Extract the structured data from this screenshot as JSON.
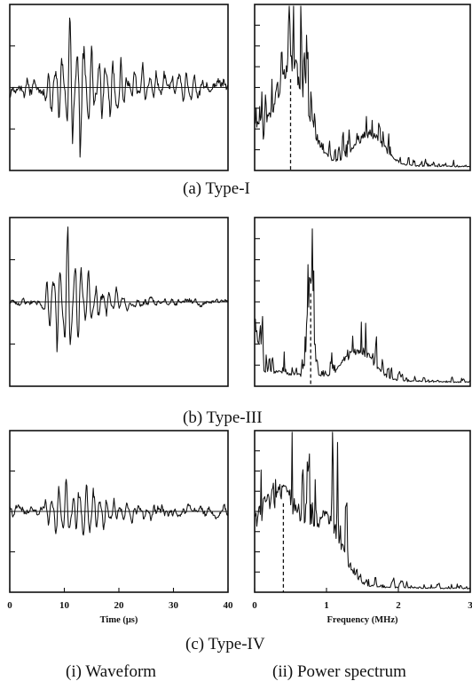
{
  "captions": {
    "a": "(a)  Type-I",
    "b": "(b)  Type-III",
    "c": "(c)  Type-IV",
    "col_i": "(i)  Waveform",
    "col_ii": "(ii)  Power spectrum"
  },
  "chart_data": [
    {
      "id": "a-waveform",
      "type": "line",
      "row": "a",
      "column": "i",
      "xlim": [
        0,
        40
      ],
      "ylim": [
        -1,
        1
      ],
      "yticks": 4,
      "signal": {
        "kind": "waveform",
        "onset": 5.5,
        "peak_time": 11,
        "decay": 9,
        "freq": 0.75,
        "amp": 0.55,
        "noise": 0.1,
        "seed": 11
      }
    },
    {
      "id": "a-spectrum",
      "type": "line",
      "row": "a",
      "column": "ii",
      "xlim": [
        0,
        3
      ],
      "ylim": [
        0,
        1
      ],
      "yticks": 8,
      "marker_x": 0.5,
      "signal": {
        "kind": "spectrum",
        "peak_f": 0.5,
        "peak_h": 0.92,
        "width": 0.32,
        "secondary_f": 1.6,
        "secondary_h": 0.3,
        "floor": 0.08,
        "tail": 1.2,
        "seed": 7
      }
    },
    {
      "id": "b-waveform",
      "type": "line",
      "row": "b",
      "column": "i",
      "xlim": [
        0,
        40
      ],
      "ylim": [
        -1,
        1
      ],
      "yticks": 4,
      "signal": {
        "kind": "waveform",
        "onset": 5.5,
        "peak_time": 10.5,
        "decay": 4.5,
        "freq": 0.78,
        "amp": 0.58,
        "noise": 0.045,
        "seed": 23
      }
    },
    {
      "id": "b-spectrum",
      "type": "line",
      "row": "b",
      "column": "ii",
      "xlim": [
        0,
        3
      ],
      "ylim": [
        0,
        1
      ],
      "yticks": 8,
      "marker_x": 0.78,
      "signal": {
        "kind": "spectrum",
        "peak_f": 0.78,
        "peak_h": 0.97,
        "width": 0.05,
        "secondary_f": 1.45,
        "secondary_h": 0.28,
        "floor": 0.14,
        "tail": 1.0,
        "seed": 31
      }
    },
    {
      "id": "c-waveform",
      "type": "line",
      "row": "c",
      "column": "i",
      "xlim": [
        0,
        40
      ],
      "ylim": [
        -1,
        1
      ],
      "yticks": 4,
      "xticks": [
        0,
        10,
        20,
        30,
        40
      ],
      "xlabel": "Time  (μs)",
      "signal": {
        "kind": "waveform",
        "onset": 5.5,
        "peak_time": 10,
        "decay": 8,
        "freq": 0.8,
        "amp": 0.34,
        "noise": 0.07,
        "seed": 41
      }
    },
    {
      "id": "c-spectrum",
      "type": "line",
      "row": "c",
      "column": "ii",
      "xlim": [
        0,
        3
      ],
      "ylim": [
        0,
        1
      ],
      "yticks": 8,
      "xticks": [
        0,
        1,
        2,
        3
      ],
      "xlabel": "Frequency (MHz)",
      "marker_x": 0.4,
      "signal": {
        "kind": "spectrum",
        "peak_f": 0.35,
        "peak_h": 0.88,
        "width": 0.55,
        "secondary_f": 1.05,
        "secondary_h": 0.45,
        "floor": 0.06,
        "tail": 1.4,
        "seed": 53
      }
    }
  ]
}
